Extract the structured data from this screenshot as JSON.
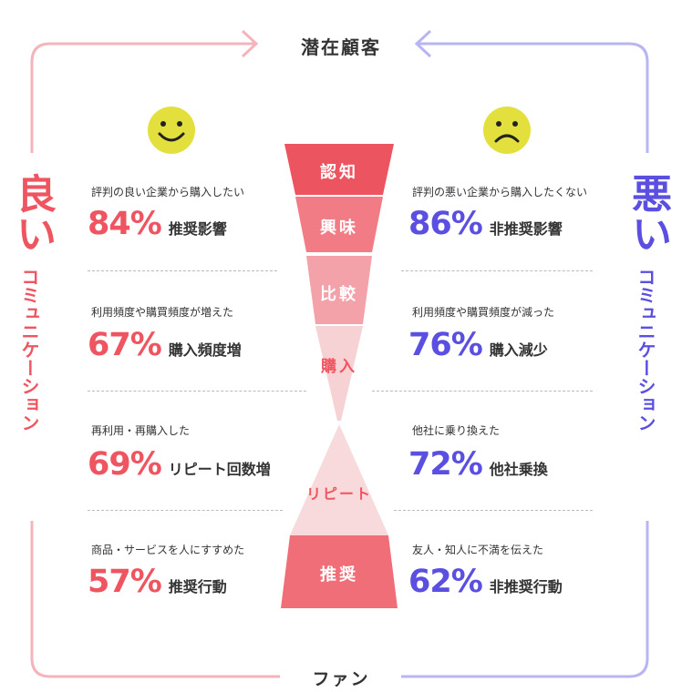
{
  "top_label": "潜在顧客",
  "bottom_label": "ファン",
  "left": {
    "big": "良い",
    "rest": "コミュニケーション",
    "face": "smile-face-icon",
    "color": "#ef5560",
    "stats": [
      {
        "label": "評判の良い企業から購入したい",
        "value": "84%",
        "unit": "推奨影響"
      },
      {
        "label": "利用頻度や購買頻度が増えた",
        "value": "67%",
        "unit": "購入頻度増"
      },
      {
        "label": "再利用・再購入した",
        "value": "69%",
        "unit": "リピート回数増"
      },
      {
        "label": "商品・サービスを人にすすめた",
        "value": "57%",
        "unit": "推奨行動"
      }
    ]
  },
  "right": {
    "big": "悪い",
    "rest": "コミュニケーション",
    "face": "frown-face-icon",
    "color": "#5a4fe0",
    "stats": [
      {
        "label": "評判の悪い企業から購入したくない",
        "value": "86%",
        "unit": "非推奨影響"
      },
      {
        "label": "利用頻度や購買頻度が減った",
        "value": "76%",
        "unit": "購入減少"
      },
      {
        "label": "他社に乗り換えた",
        "value": "72%",
        "unit": "他社乗換"
      },
      {
        "label": "友人・知人に不満を伝えた",
        "value": "62%",
        "unit": "非推奨行動"
      }
    ]
  },
  "funnel": [
    "認知",
    "興味",
    "比較",
    "購入",
    "リピート",
    "推奨"
  ],
  "colors": {
    "left_arrow": "#f5b4bb",
    "right_arrow": "#b8b6f2",
    "face": "#e3e03d"
  }
}
